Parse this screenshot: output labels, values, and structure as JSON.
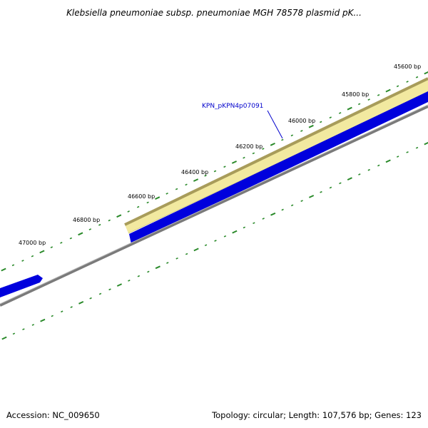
{
  "title": "Klebsiella pneumoniae subsp. pneumoniae MGH 78578 plasmid pK...",
  "footer": {
    "accession": "Accession: NC_009650",
    "summary": "Topology: circular; Length: 107,576 bp; Genes: 123"
  },
  "ruler": {
    "labels": [
      "45600 bp",
      "45800 bp",
      "46000 bp",
      "46200 bp",
      "46400 bp",
      "46600 bp",
      "46800 bp",
      "47000 bp"
    ]
  },
  "gene": {
    "label": "KPN_pKPN4p07091"
  },
  "colors": {
    "tick": "#2a8a2a",
    "highlight_fill": "#f2e9a0",
    "highlight_border": "#a89c5a",
    "gene": "#0000dd",
    "backbone": "#7a7a7a",
    "gene_label": "#0000cc"
  }
}
